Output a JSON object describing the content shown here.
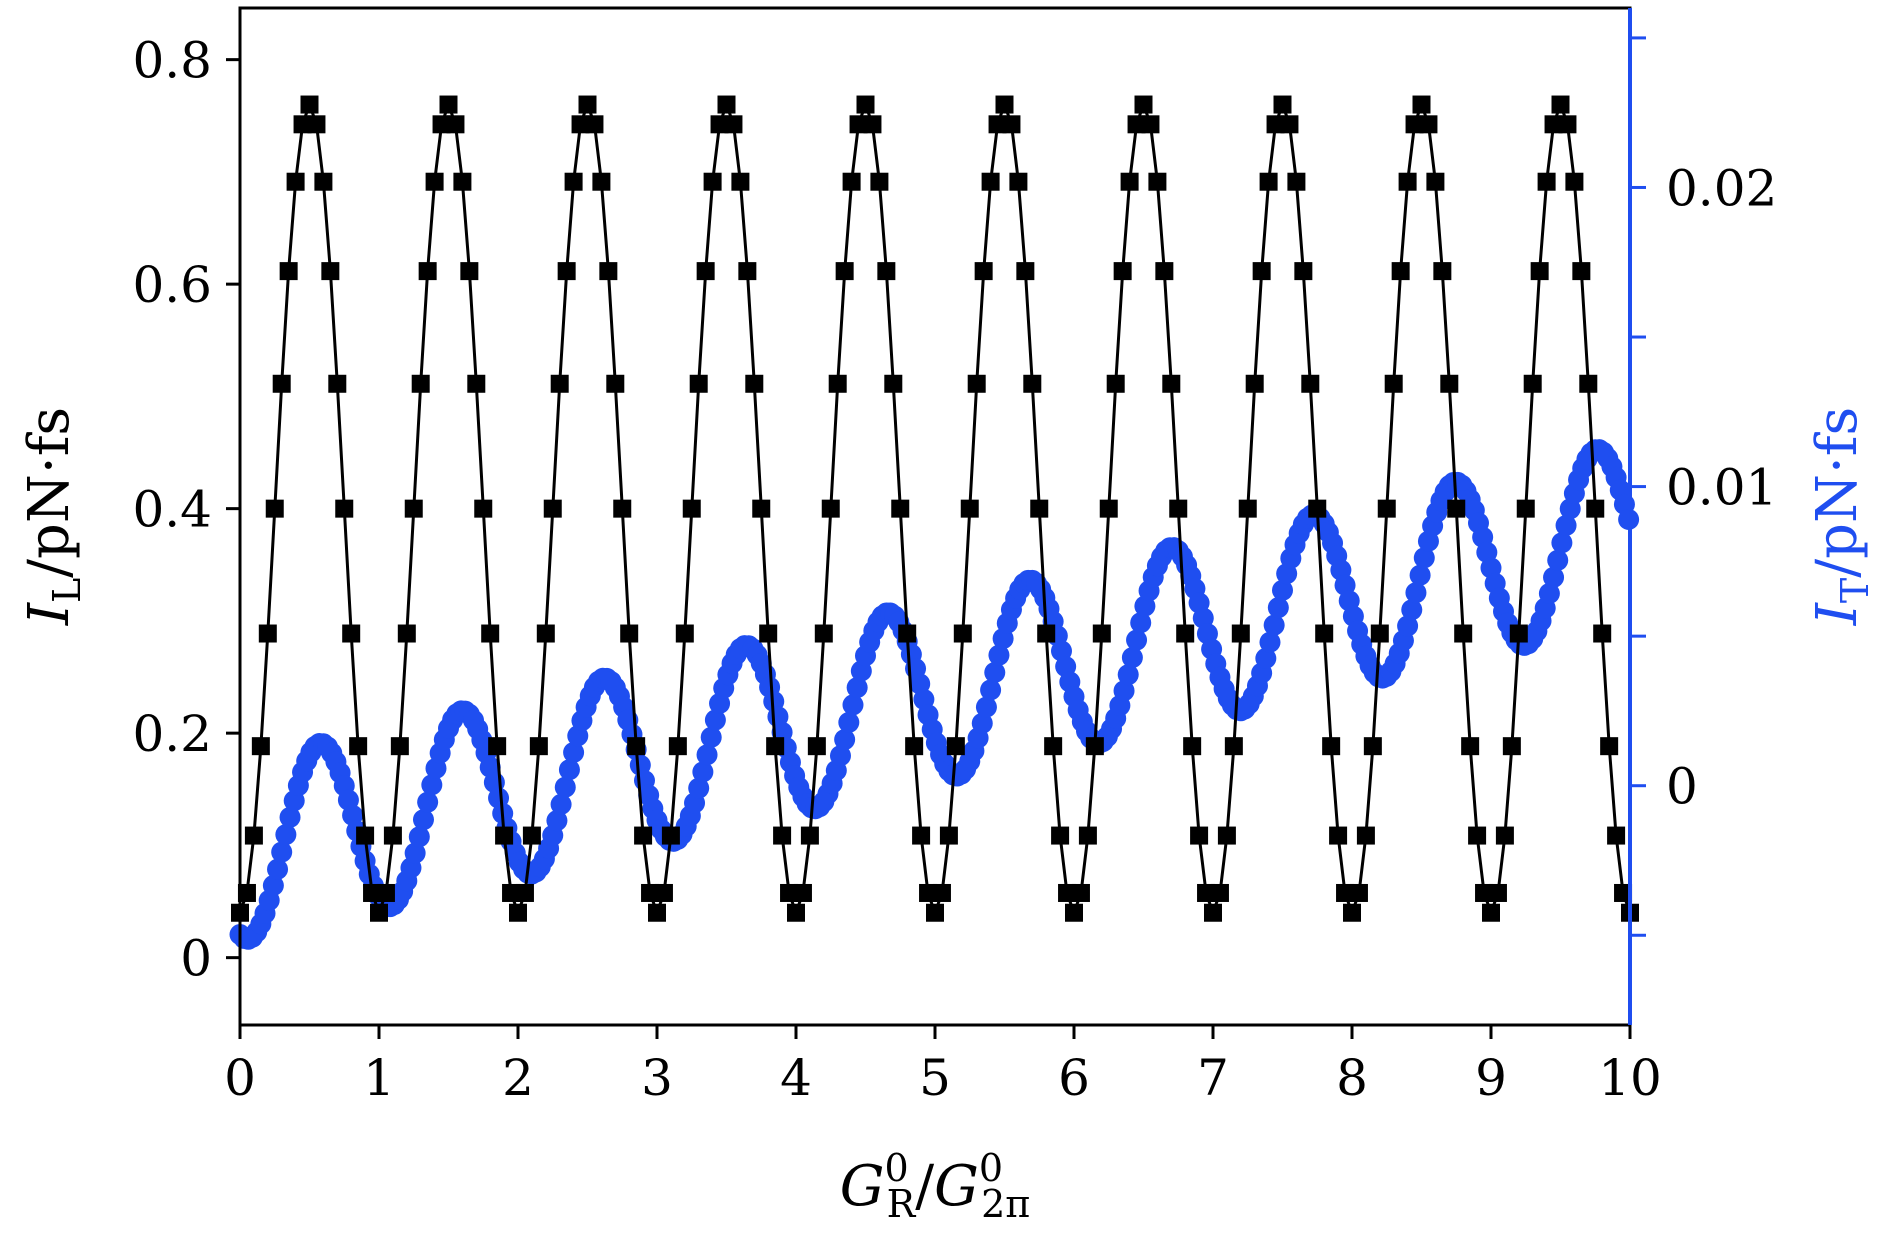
{
  "chart_data": {
    "type": "line",
    "title": "",
    "xlabel": {
      "main": "G",
      "sup1": "0",
      "sub1": "R",
      "slash": "/",
      "main2": "G",
      "sup2": "0",
      "sub2": "2π"
    },
    "ylabel_left": {
      "main": "I",
      "sub": "L",
      "unit": "/pN·fs"
    },
    "ylabel_right": {
      "main": "I",
      "sub": "T",
      "unit": "/pN·fs"
    },
    "xlim": [
      0,
      10
    ],
    "ylim_left": [
      -0.06,
      0.846
    ],
    "ylim_right": [
      -0.008,
      0.026
    ],
    "x_ticks": [
      0,
      1,
      2,
      3,
      4,
      5,
      6,
      7,
      8,
      9,
      10
    ],
    "x_tick_labels": [
      "0",
      "1",
      "2",
      "3",
      "4",
      "5",
      "6",
      "7",
      "8",
      "9",
      "10"
    ],
    "y_left_ticks": [
      0,
      0.2,
      0.4,
      0.6,
      0.8
    ],
    "y_left_tick_labels": [
      "0",
      "0.2",
      "0.4",
      "0.6",
      "0.8"
    ],
    "y_right_ticks": [
      0,
      0.01,
      0.02
    ],
    "y_right_tick_labels": [
      "0",
      "0.01",
      "0.02"
    ],
    "y_right_minor_ticks": [
      -0.005,
      0.005,
      0.015,
      0.025
    ],
    "axis_color_right": "#1f4ef0",
    "series": [
      {
        "name": "I_L",
        "axis": "left",
        "marker": "square",
        "color": "#000000",
        "model": "0.4 - 0.36*cos(2*pi*x)",
        "x_step": 0.05
      },
      {
        "name": "I_T",
        "axis": "right",
        "marker": "circle",
        "color": "#1f4ef0",
        "model": "0.00107*x - 0.0022 - 0.0030*cos(2*pi*x*0.98 - 0.39)",
        "x_step": 0.03
      }
    ]
  }
}
